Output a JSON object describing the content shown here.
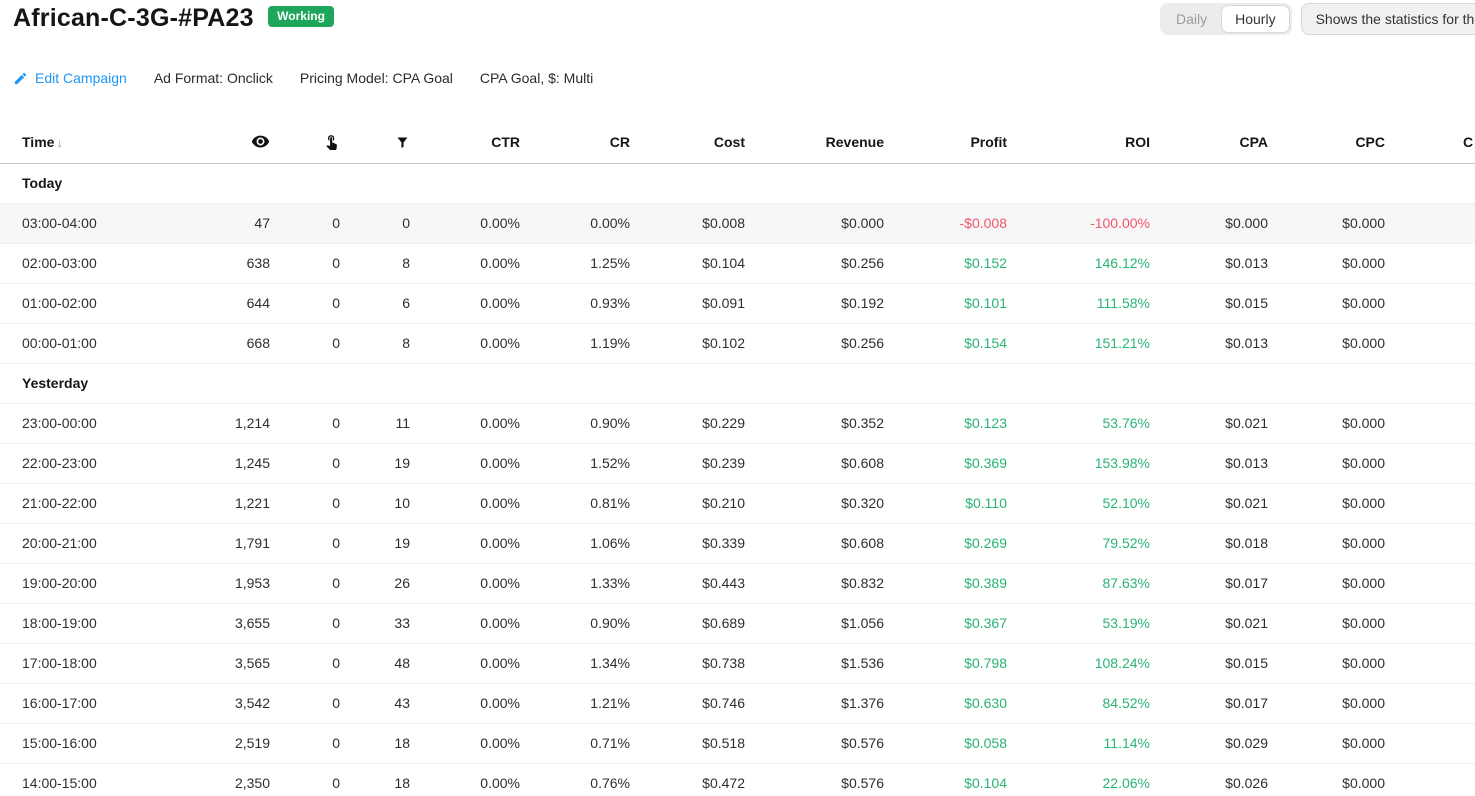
{
  "header": {
    "title": "African-C-3G-#PA23",
    "status_badge": "Working",
    "view_toggle": {
      "daily": "Daily",
      "hourly": "Hourly",
      "selected": "Hourly"
    },
    "stats_note": "Shows the statistics for the"
  },
  "campaign_meta": {
    "edit_link": "Edit Campaign",
    "ad_format": "Ad Format: Onclick",
    "pricing_model": "Pricing Model: CPA Goal",
    "cpa_goal": "CPA Goal, $: Multi"
  },
  "colors": {
    "positive": "#2ab475",
    "negative": "#f1556c",
    "badge_green": "#1ea65b",
    "link_blue": "#2196f3"
  },
  "table": {
    "columns": [
      {
        "id": "time",
        "label": "Time",
        "sort_arrow": "↓",
        "align": "left"
      },
      {
        "id": "impressions",
        "icon": "eye-icon"
      },
      {
        "id": "clicks",
        "icon": "tap-icon"
      },
      {
        "id": "conversions",
        "icon": "funnel-icon"
      },
      {
        "id": "ctr",
        "label": "CTR"
      },
      {
        "id": "cr",
        "label": "CR"
      },
      {
        "id": "cost",
        "label": "Cost"
      },
      {
        "id": "revenue",
        "label": "Revenue"
      },
      {
        "id": "profit",
        "label": "Profit",
        "colored": true
      },
      {
        "id": "roi",
        "label": "ROI",
        "colored": true
      },
      {
        "id": "cpa",
        "label": "CPA"
      },
      {
        "id": "cpc",
        "label": "CPC"
      },
      {
        "id": "cut",
        "label": "C",
        "cut": true
      }
    ],
    "highlight": {
      "section": 0,
      "row": 0
    },
    "sections": [
      {
        "label": "Today",
        "rows": [
          [
            "03:00-04:00",
            "47",
            "0",
            "0",
            "0.00%",
            "0.00%",
            "$0.008",
            "$0.000",
            "-$0.008",
            "-100.00%",
            "$0.000",
            "$0.000"
          ],
          [
            "02:00-03:00",
            "638",
            "0",
            "8",
            "0.00%",
            "1.25%",
            "$0.104",
            "$0.256",
            "$0.152",
            "146.12%",
            "$0.013",
            "$0.000"
          ],
          [
            "01:00-02:00",
            "644",
            "0",
            "6",
            "0.00%",
            "0.93%",
            "$0.091",
            "$0.192",
            "$0.101",
            "111.58%",
            "$0.015",
            "$0.000"
          ],
          [
            "00:00-01:00",
            "668",
            "0",
            "8",
            "0.00%",
            "1.19%",
            "$0.102",
            "$0.256",
            "$0.154",
            "151.21%",
            "$0.013",
            "$0.000"
          ]
        ]
      },
      {
        "label": "Yesterday",
        "rows": [
          [
            "23:00-00:00",
            "1,214",
            "0",
            "11",
            "0.00%",
            "0.90%",
            "$0.229",
            "$0.352",
            "$0.123",
            "53.76%",
            "$0.021",
            "$0.000"
          ],
          [
            "22:00-23:00",
            "1,245",
            "0",
            "19",
            "0.00%",
            "1.52%",
            "$0.239",
            "$0.608",
            "$0.369",
            "153.98%",
            "$0.013",
            "$0.000"
          ],
          [
            "21:00-22:00",
            "1,221",
            "0",
            "10",
            "0.00%",
            "0.81%",
            "$0.210",
            "$0.320",
            "$0.110",
            "52.10%",
            "$0.021",
            "$0.000"
          ],
          [
            "20:00-21:00",
            "1,791",
            "0",
            "19",
            "0.00%",
            "1.06%",
            "$0.339",
            "$0.608",
            "$0.269",
            "79.52%",
            "$0.018",
            "$0.000"
          ],
          [
            "19:00-20:00",
            "1,953",
            "0",
            "26",
            "0.00%",
            "1.33%",
            "$0.443",
            "$0.832",
            "$0.389",
            "87.63%",
            "$0.017",
            "$0.000"
          ],
          [
            "18:00-19:00",
            "3,655",
            "0",
            "33",
            "0.00%",
            "0.90%",
            "$0.689",
            "$1.056",
            "$0.367",
            "53.19%",
            "$0.021",
            "$0.000"
          ],
          [
            "17:00-18:00",
            "3,565",
            "0",
            "48",
            "0.00%",
            "1.34%",
            "$0.738",
            "$1.536",
            "$0.798",
            "108.24%",
            "$0.015",
            "$0.000"
          ],
          [
            "16:00-17:00",
            "3,542",
            "0",
            "43",
            "0.00%",
            "1.21%",
            "$0.746",
            "$1.376",
            "$0.630",
            "84.52%",
            "$0.017",
            "$0.000"
          ],
          [
            "15:00-16:00",
            "2,519",
            "0",
            "18",
            "0.00%",
            "0.71%",
            "$0.518",
            "$0.576",
            "$0.058",
            "11.14%",
            "$0.029",
            "$0.000"
          ],
          [
            "14:00-15:00",
            "2,350",
            "0",
            "18",
            "0.00%",
            "0.76%",
            "$0.472",
            "$0.576",
            "$0.104",
            "22.06%",
            "$0.026",
            "$0.000"
          ]
        ]
      }
    ]
  }
}
